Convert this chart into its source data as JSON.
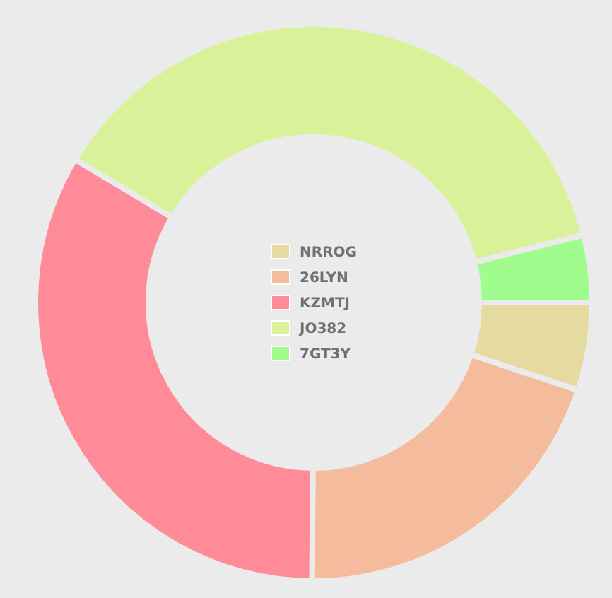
{
  "chart_data": {
    "type": "donut",
    "categories": [
      "NRROG",
      "26LYN",
      "KZMTJ",
      "JO382",
      "7GT3Y"
    ],
    "values": [
      5.1,
      20,
      33.5,
      37.5,
      3.9
    ],
    "colors": [
      "#e5dba0",
      "#f4bc9c",
      "#ff8a98",
      "#d9f29a",
      "#a0fc8c"
    ],
    "legend": "center"
  }
}
